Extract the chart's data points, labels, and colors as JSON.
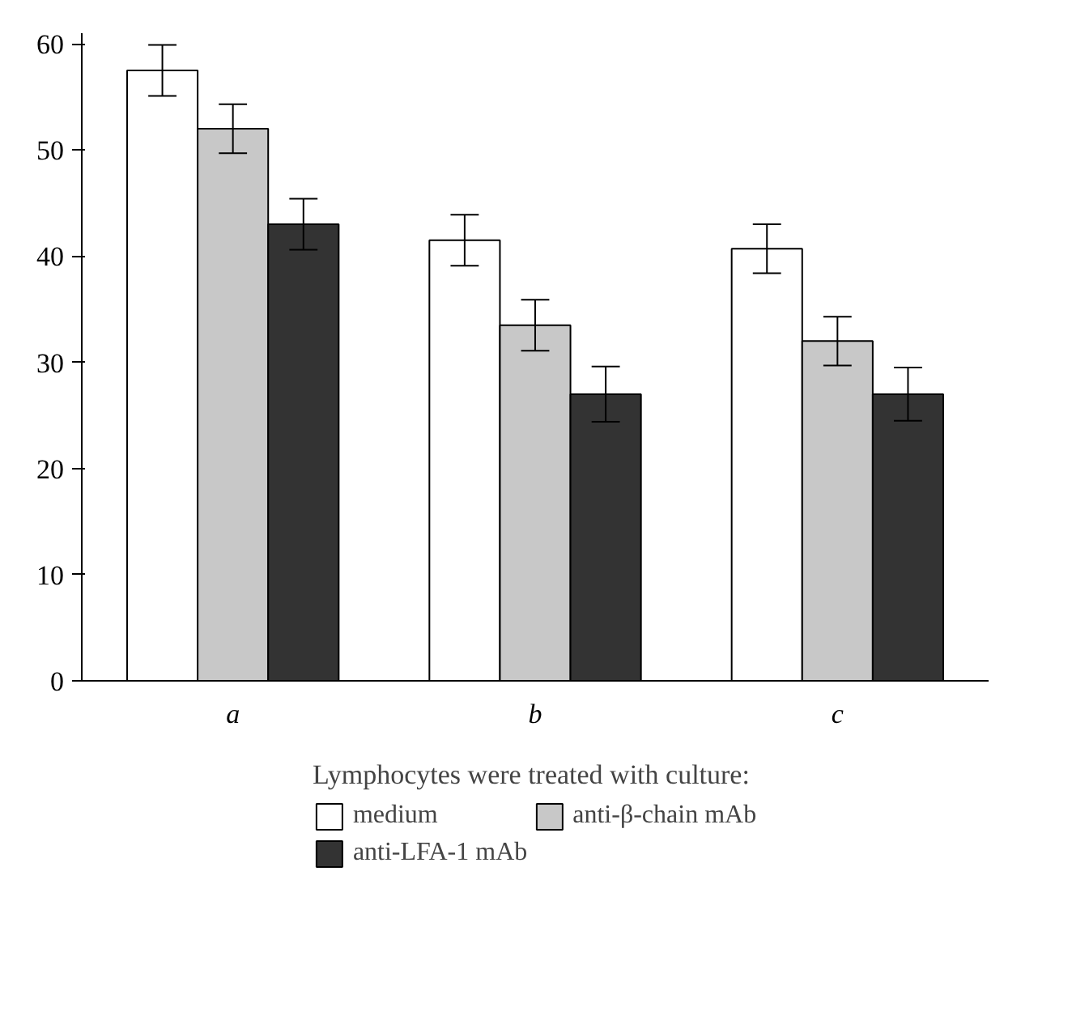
{
  "chart_data": {
    "type": "bar",
    "categories": [
      "a",
      "b",
      "c"
    ],
    "series": [
      {
        "name": "medium",
        "color": "#ffffff",
        "values": [
          57.5,
          41.5,
          40.7
        ],
        "errors": [
          2.4,
          2.4,
          2.3
        ]
      },
      {
        "name": "anti-β-chain mAb",
        "color": "#c8c8c8",
        "values": [
          52,
          33.5,
          32
        ],
        "errors": [
          2.3,
          2.4,
          2.3
        ]
      },
      {
        "name": "anti-LFA-1 mAb",
        "color": "#333333",
        "values": [
          43,
          27,
          27
        ],
        "errors": [
          2.4,
          2.6,
          2.5
        ]
      }
    ],
    "legend_title": "Lymphocytes were treated with culture:",
    "legend": "bottom",
    "ylim": [
      0,
      61
    ],
    "yticks": [
      0,
      10,
      20,
      30,
      40,
      50,
      60
    ],
    "grid": false
  }
}
